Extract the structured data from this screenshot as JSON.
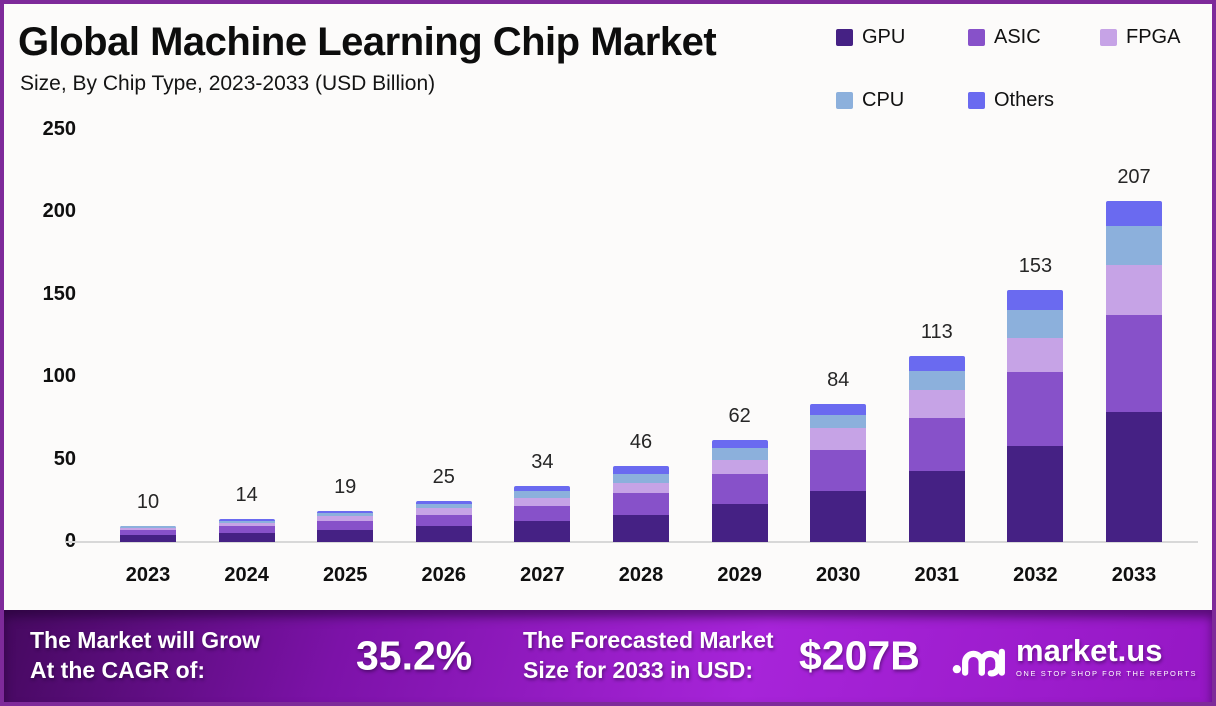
{
  "header": {
    "title": "Global Machine Learning Chip Market",
    "subtitle": "Size, By Chip Type, 2023-2033 (USD Billion)"
  },
  "colors": {
    "frame_border": "#7e2a9a",
    "banner_gradient_left": "#45095f",
    "banner_gradient_right": "#a724d9",
    "axis_text": "#0f0f0f",
    "baseline": "#d8d8d8"
  },
  "icons": {
    "logo_icon": "marketus-swirl-m"
  },
  "chart_data": {
    "type": "bar",
    "stacked": true,
    "title": "Global Machine Learning Chip Market",
    "subtitle": "Size, By Chip Type, 2023-2033 (USD Billion)",
    "unit": "USD Billion",
    "categories": [
      "2023",
      "2024",
      "2025",
      "2026",
      "2027",
      "2028",
      "2029",
      "2030",
      "2031",
      "2032",
      "2033"
    ],
    "series": [
      {
        "name": "GPU",
        "color": "#452184",
        "values": [
          4,
          5.5,
          7,
          9.5,
          12.5,
          16.5,
          23,
          31,
          43,
          58,
          79
        ]
      },
      {
        "name": "ASIC",
        "color": "#8751c9",
        "values": [
          3,
          4,
          5.5,
          7,
          9.5,
          13,
          18,
          25,
          32,
          45,
          59
        ]
      },
      {
        "name": "FPGA",
        "color": "#c6a3e6",
        "values": [
          1.5,
          2,
          3,
          4,
          5,
          6.5,
          9,
          13,
          17,
          21,
          30
        ]
      },
      {
        "name": "CPU",
        "color": "#8cb0dc",
        "values": [
          1,
          1.5,
          2,
          2.5,
          4,
          5,
          7,
          8,
          12,
          17,
          24
        ]
      },
      {
        "name": "Others",
        "color": "#6a6af0",
        "values": [
          0.5,
          1,
          1.5,
          2,
          3,
          5,
          5,
          7,
          9,
          12,
          15
        ]
      }
    ],
    "totals": [
      10,
      14,
      19,
      25,
      34,
      46,
      62,
      84,
      113,
      153,
      207
    ],
    "y_ticks": [
      0,
      50,
      100,
      150,
      200,
      250
    ],
    "ylim": [
      0,
      250
    ],
    "grid": false,
    "legend_position": "top-right"
  },
  "banner": {
    "growth_label_line1": "The Market will Grow",
    "growth_label_line2": "At the CAGR of:",
    "cagr_value": "35.2%",
    "forecast_label_line1": "The Forecasted Market",
    "forecast_label_line2": "Size for 2033 in USD:",
    "forecast_value": "$207B",
    "logo_text": "market.us",
    "logo_tagline": "ONE STOP SHOP FOR THE REPORTS"
  }
}
